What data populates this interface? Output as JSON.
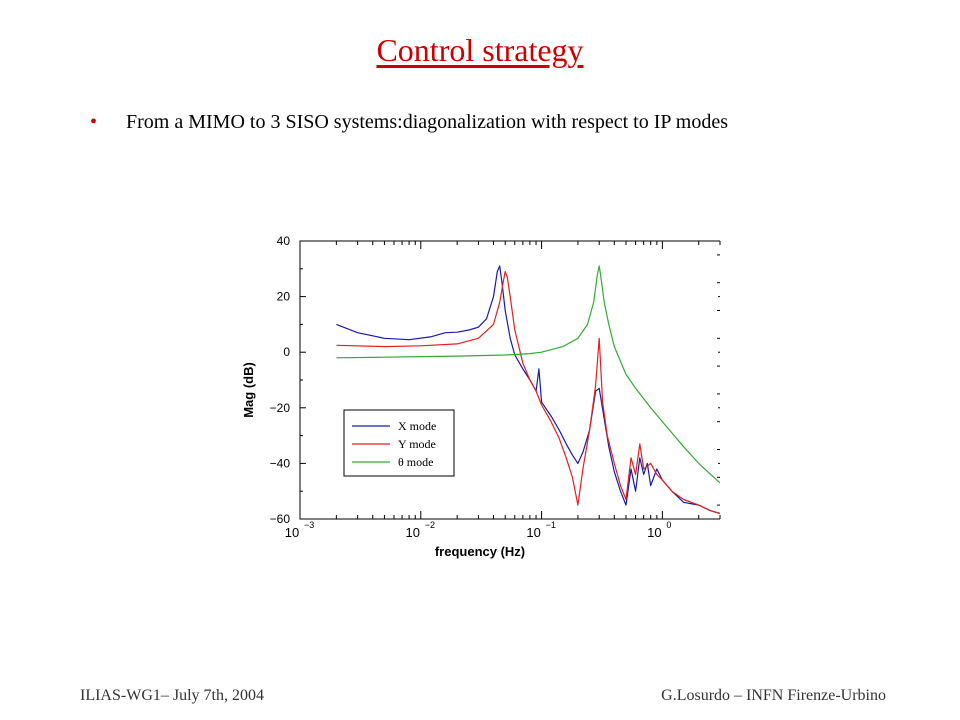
{
  "slide": {
    "title": "Control strategy",
    "bullet": "From a MIMO to 3 SISO systems:diagonalization with respect to IP modes",
    "footer_left": "ILIAS-WG1– July 7th, 2004",
    "footer_right": "G.Losurdo – INFN Firenze-Urbino"
  },
  "chart_data": {
    "type": "line",
    "xlabel": "frequency (Hz)",
    "ylabel": "Mag (dB)",
    "x_scale": "log",
    "xlim": [
      0.001,
      3
    ],
    "ylim": [
      -60,
      40
    ],
    "x_ticks": [
      {
        "value": 0.001,
        "base": "10",
        "exp": "−3"
      },
      {
        "value": 0.01,
        "base": "10",
        "exp": "−2"
      },
      {
        "value": 0.1,
        "base": "10",
        "exp": "−1"
      },
      {
        "value": 1,
        "base": "10",
        "exp": "0"
      }
    ],
    "y_ticks": [
      {
        "value": 40,
        "label": "40"
      },
      {
        "value": 20,
        "label": "20"
      },
      {
        "value": 0,
        "label": "0"
      },
      {
        "value": -20,
        "label": "−20"
      },
      {
        "value": -40,
        "label": "−40"
      },
      {
        "value": -60,
        "label": "−60"
      }
    ],
    "legend_placement": "lower-left",
    "series": [
      {
        "name": "X mode",
        "color": "#1a1aa8",
        "points": [
          [
            0.002,
            10
          ],
          [
            0.003,
            7
          ],
          [
            0.005,
            5
          ],
          [
            0.008,
            4.5
          ],
          [
            0.012,
            5.5
          ],
          [
            0.016,
            7
          ],
          [
            0.02,
            7.2
          ],
          [
            0.025,
            8
          ],
          [
            0.03,
            9
          ],
          [
            0.035,
            12
          ],
          [
            0.04,
            20
          ],
          [
            0.043,
            29
          ],
          [
            0.045,
            31
          ],
          [
            0.047,
            25
          ],
          [
            0.05,
            15
          ],
          [
            0.055,
            5
          ],
          [
            0.06,
            -1
          ],
          [
            0.07,
            -6
          ],
          [
            0.08,
            -10
          ],
          [
            0.09,
            -14
          ],
          [
            0.095,
            -6
          ],
          [
            0.1,
            -18
          ],
          [
            0.12,
            -23
          ],
          [
            0.14,
            -28
          ],
          [
            0.16,
            -33
          ],
          [
            0.18,
            -37
          ],
          [
            0.2,
            -40
          ],
          [
            0.22,
            -36
          ],
          [
            0.25,
            -28
          ],
          [
            0.28,
            -14
          ],
          [
            0.3,
            -13
          ],
          [
            0.33,
            -24
          ],
          [
            0.36,
            -34
          ],
          [
            0.4,
            -43
          ],
          [
            0.45,
            -50
          ],
          [
            0.5,
            -55
          ],
          [
            0.55,
            -42
          ],
          [
            0.6,
            -50
          ],
          [
            0.65,
            -38
          ],
          [
            0.7,
            -44
          ],
          [
            0.75,
            -40
          ],
          [
            0.8,
            -48
          ],
          [
            0.9,
            -42
          ],
          [
            1.0,
            -46
          ],
          [
            1.2,
            -50
          ],
          [
            1.5,
            -54
          ],
          [
            2.0,
            -55
          ],
          [
            2.5,
            -57
          ],
          [
            3.0,
            -58
          ]
        ]
      },
      {
        "name": "Y mode",
        "color": "#dd2222",
        "points": [
          [
            0.002,
            2.5
          ],
          [
            0.005,
            2
          ],
          [
            0.01,
            2.3
          ],
          [
            0.02,
            3
          ],
          [
            0.03,
            5
          ],
          [
            0.04,
            10
          ],
          [
            0.045,
            18
          ],
          [
            0.048,
            25
          ],
          [
            0.05,
            29
          ],
          [
            0.052,
            27
          ],
          [
            0.055,
            20
          ],
          [
            0.06,
            8
          ],
          [
            0.07,
            -4
          ],
          [
            0.08,
            -10
          ],
          [
            0.09,
            -14
          ],
          [
            0.1,
            -19
          ],
          [
            0.12,
            -25
          ],
          [
            0.14,
            -31
          ],
          [
            0.16,
            -38
          ],
          [
            0.18,
            -45
          ],
          [
            0.2,
            -55
          ],
          [
            0.22,
            -42
          ],
          [
            0.25,
            -28
          ],
          [
            0.28,
            -12
          ],
          [
            0.3,
            5
          ],
          [
            0.32,
            -18
          ],
          [
            0.35,
            -30
          ],
          [
            0.4,
            -40
          ],
          [
            0.45,
            -48
          ],
          [
            0.5,
            -53
          ],
          [
            0.55,
            -38
          ],
          [
            0.6,
            -44
          ],
          [
            0.65,
            -33
          ],
          [
            0.7,
            -42
          ],
          [
            0.8,
            -40
          ],
          [
            0.9,
            -44
          ],
          [
            1.0,
            -46
          ],
          [
            1.2,
            -50
          ],
          [
            1.5,
            -53
          ],
          [
            2.0,
            -55
          ],
          [
            2.5,
            -57
          ],
          [
            3.0,
            -58
          ]
        ]
      },
      {
        "name": "θ mode",
        "color": "#33aa33",
        "points": [
          [
            0.002,
            -2
          ],
          [
            0.005,
            -1.8
          ],
          [
            0.01,
            -1.6
          ],
          [
            0.02,
            -1.4
          ],
          [
            0.05,
            -1
          ],
          [
            0.08,
            -0.5
          ],
          [
            0.1,
            0
          ],
          [
            0.15,
            2
          ],
          [
            0.2,
            5
          ],
          [
            0.24,
            10
          ],
          [
            0.27,
            18
          ],
          [
            0.29,
            28
          ],
          [
            0.3,
            31
          ],
          [
            0.31,
            27
          ],
          [
            0.33,
            18
          ],
          [
            0.36,
            10
          ],
          [
            0.4,
            2
          ],
          [
            0.5,
            -8
          ],
          [
            0.6,
            -13
          ],
          [
            0.8,
            -20
          ],
          [
            1.0,
            -25
          ],
          [
            1.5,
            -34
          ],
          [
            2.0,
            -40
          ],
          [
            3.0,
            -47
          ]
        ]
      }
    ]
  }
}
